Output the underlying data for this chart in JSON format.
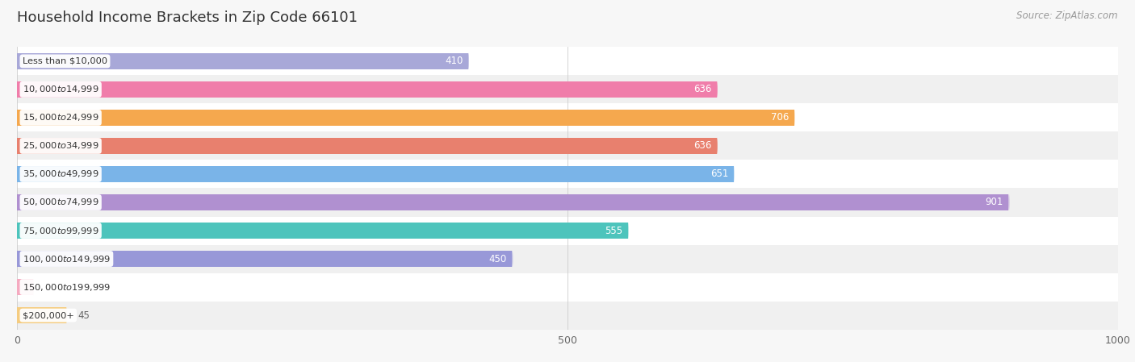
{
  "title": "Household Income Brackets in Zip Code 66101",
  "source": "Source: ZipAtlas.com",
  "categories": [
    "Less than $10,000",
    "$10,000 to $14,999",
    "$15,000 to $24,999",
    "$25,000 to $34,999",
    "$35,000 to $49,999",
    "$50,000 to $74,999",
    "$75,000 to $99,999",
    "$100,000 to $149,999",
    "$150,000 to $199,999",
    "$200,000+"
  ],
  "values": [
    410,
    636,
    706,
    636,
    651,
    901,
    555,
    450,
    15,
    45
  ],
  "bar_colors": [
    "#a8a8d8",
    "#f07daa",
    "#f5a84e",
    "#e8806e",
    "#7ab4e8",
    "#b090d0",
    "#4dc4bc",
    "#9898d8",
    "#f5aac0",
    "#f5cc80"
  ],
  "label_inside_color": "#ffffff",
  "label_outside_color": "#666666",
  "xlim": [
    0,
    1000
  ],
  "xticks": [
    0,
    500,
    1000
  ],
  "background_color": "#f7f7f7",
  "row_colors": [
    "#ffffff",
    "#f0f0f0"
  ],
  "title_fontsize": 13,
  "source_fontsize": 8.5
}
